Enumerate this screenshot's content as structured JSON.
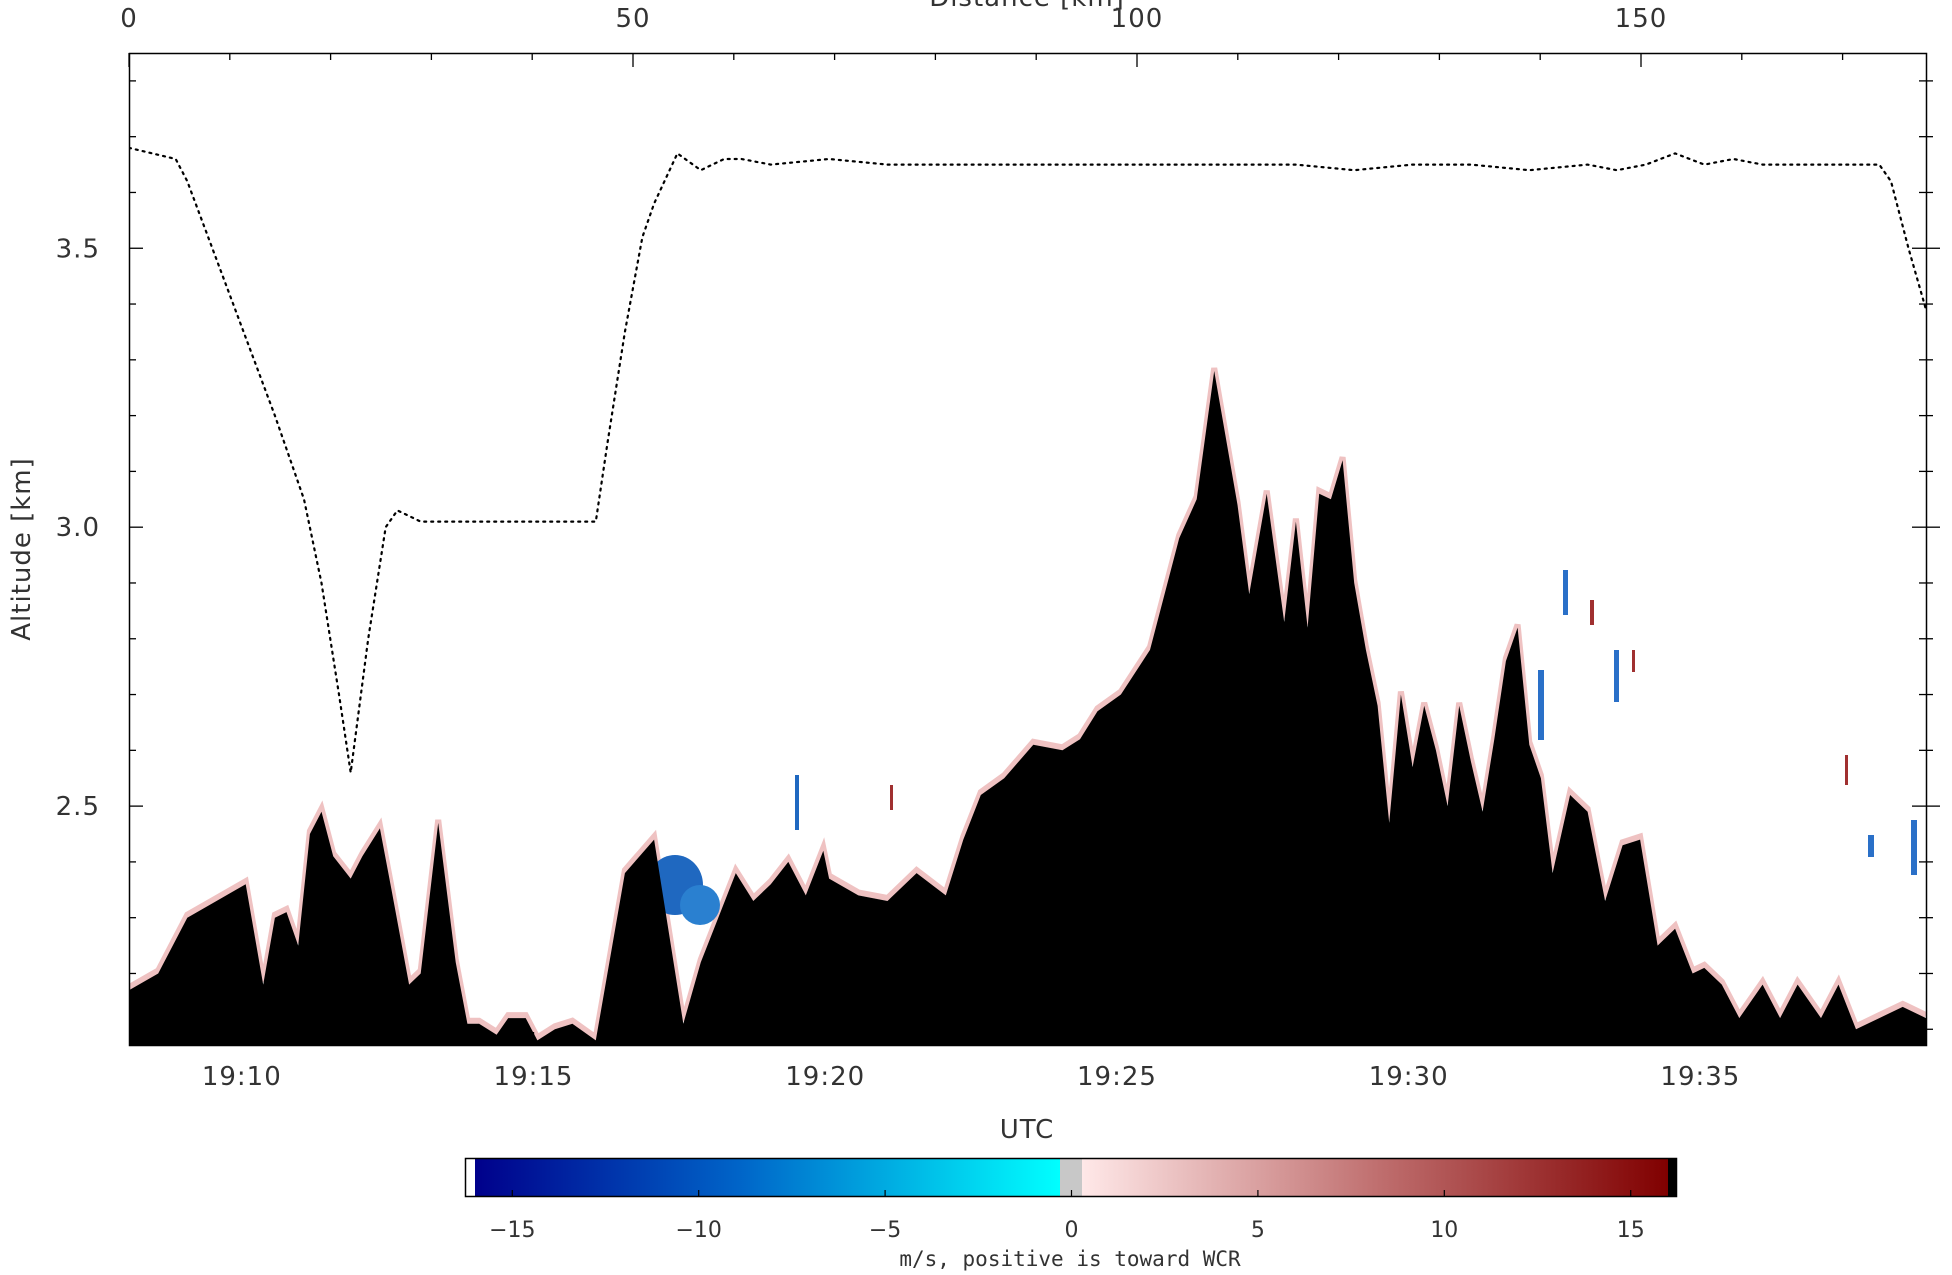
{
  "chart_data": {
    "type": "area",
    "ylabel": "Altitude [km]",
    "xlabel": "UTC",
    "top_axis_title": "Distance [km]",
    "top_axis_ticks": [
      "0",
      "50",
      "100",
      "150"
    ],
    "x_ticks": [
      "19:10",
      "19:15",
      "19:20",
      "19:25",
      "19:30",
      "19:35"
    ],
    "y_ticks": [
      "2.5",
      "3.0",
      "3.5"
    ],
    "ylim": [
      2.07,
      3.85
    ],
    "xlim": [
      "19:08:04",
      "19:38:54"
    ],
    "colorbar": {
      "label": "m/s, positive is toward WCR",
      "ticks": [
        "−15",
        "−10",
        "−5",
        "0",
        "5",
        "10",
        "15"
      ],
      "range": [
        -16,
        16
      ],
      "colors": {
        "neg_min": "#00008b",
        "neg_mid": "#0064c8",
        "neg_zero": "#00ffff",
        "zero": "#c8c8c8",
        "pos_zero": "#ffe8e8",
        "pos_mid": "#c07070",
        "pos_max": "#800000"
      }
    },
    "series": [
      {
        "name": "",
        "style": "dotted-line",
        "x_min": [
          0,
          0.4,
          0.8,
          1.0,
          1.5,
          2.0,
          2.5,
          3.0,
          3.3,
          3.6,
          3.8,
          4.1,
          4.4,
          4.6,
          5.0,
          5.5,
          6.0,
          6.5,
          7.0,
          7.5,
          8.0,
          8.2,
          8.5,
          8.8,
          9.0,
          9.4,
          9.8,
          10.2,
          10.5,
          11,
          12,
          13,
          14,
          15,
          16,
          17,
          18,
          19,
          20,
          21,
          22,
          23,
          24,
          25,
          25.5,
          26,
          26.5,
          27,
          27.5,
          28,
          28.5,
          29,
          29.5,
          30,
          30.2,
          30.5,
          30.8
        ],
        "altitude_km": [
          3.68,
          3.67,
          3.66,
          3.62,
          3.48,
          3.34,
          3.2,
          3.05,
          2.9,
          2.7,
          2.56,
          2.8,
          3.0,
          3.03,
          3.01,
          3.01,
          3.01,
          3.01,
          3.01,
          3.01,
          3.01,
          3.15,
          3.35,
          3.52,
          3.58,
          3.67,
          3.64,
          3.66,
          3.66,
          3.65,
          3.66,
          3.65,
          3.65,
          3.65,
          3.65,
          3.65,
          3.65,
          3.65,
          3.65,
          3.64,
          3.65,
          3.65,
          3.64,
          3.65,
          3.64,
          3.65,
          3.67,
          3.65,
          3.66,
          3.65,
          3.65,
          3.65,
          3.65,
          3.65,
          3.62,
          3.5,
          3.39
        ]
      },
      {
        "name": "",
        "style": "filled-area",
        "color": "#000000",
        "x_min": [
          0,
          0.5,
          1.0,
          1.5,
          2.0,
          2.3,
          2.5,
          2.7,
          2.9,
          3.1,
          3.3,
          3.5,
          3.8,
          4.0,
          4.3,
          4.5,
          4.8,
          5.0,
          5.3,
          5.6,
          5.8,
          6.0,
          6.3,
          6.5,
          6.8,
          7.0,
          7.3,
          7.6,
          8.0,
          8.5,
          9.0,
          9.5,
          9.8,
          10.1,
          10.4,
          10.7,
          11.0,
          11.3,
          11.6,
          11.9,
          12.0,
          12.5,
          13.0,
          13.5,
          14.0,
          14.3,
          14.6,
          15.0,
          15.5,
          16.0,
          16.3,
          16.6,
          17.0,
          17.5,
          18.0,
          18.3,
          18.6,
          19.0,
          19.2,
          19.5,
          19.8,
          20.0,
          20.2,
          20.4,
          20.6,
          20.8,
          21.0,
          21.2,
          21.4,
          21.6,
          21.8,
          22.0,
          22.2,
          22.4,
          22.6,
          22.8,
          23.0,
          23.2,
          23.4,
          23.6,
          23.8,
          24.0,
          24.2,
          24.4,
          24.7,
          25.0,
          25.3,
          25.6,
          25.9,
          26.2,
          26.5,
          26.8,
          27.0,
          27.3,
          27.6,
          28.0,
          28.3,
          28.6,
          29.0,
          29.3,
          29.6,
          30.0,
          30.4,
          30.8
        ],
        "altitude_km": [
          2.17,
          2.2,
          2.3,
          2.33,
          2.36,
          2.18,
          2.3,
          2.31,
          2.25,
          2.45,
          2.49,
          2.41,
          2.37,
          2.41,
          2.46,
          2.35,
          2.18,
          2.2,
          2.47,
          2.22,
          2.11,
          2.11,
          2.09,
          2.12,
          2.12,
          2.08,
          2.1,
          2.11,
          2.08,
          2.38,
          2.44,
          2.11,
          2.22,
          2.3,
          2.38,
          2.33,
          2.36,
          2.4,
          2.34,
          2.42,
          2.37,
          2.34,
          2.33,
          2.38,
          2.34,
          2.44,
          2.52,
          2.55,
          2.61,
          2.6,
          2.62,
          2.67,
          2.7,
          2.78,
          2.98,
          3.05,
          3.28,
          3.04,
          2.88,
          3.06,
          2.83,
          3.01,
          2.82,
          3.06,
          3.05,
          3.12,
          2.9,
          2.78,
          2.68,
          2.47,
          2.7,
          2.57,
          2.68,
          2.6,
          2.5,
          2.68,
          2.58,
          2.49,
          2.62,
          2.76,
          2.82,
          2.61,
          2.55,
          2.38,
          2.52,
          2.49,
          2.33,
          2.43,
          2.44,
          2.25,
          2.28,
          2.2,
          2.21,
          2.18,
          2.12,
          2.18,
          2.12,
          2.18,
          2.12,
          2.18,
          2.1,
          2.12,
          2.14,
          2.12
        ]
      }
    ]
  }
}
